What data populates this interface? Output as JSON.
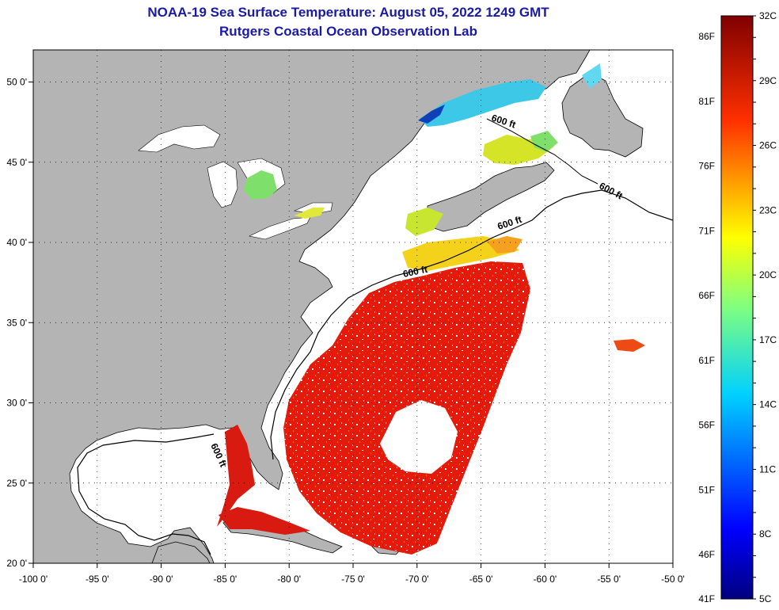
{
  "title": "NOAA-19 Sea Surface Temperature:  August 05, 2022 1249 GMT",
  "subtitle": "Rutgers Coastal Ocean Observation Lab",
  "map": {
    "lon_range": [
      -100,
      -50
    ],
    "lat_range": [
      20,
      52
    ],
    "lon_ticks": [
      {
        "value": -100,
        "label": "-100 0'"
      },
      {
        "value": -95,
        "label": "-95 0'"
      },
      {
        "value": -90,
        "label": "-90 0'"
      },
      {
        "value": -85,
        "label": "-85 0'"
      },
      {
        "value": -80,
        "label": "-80 0'"
      },
      {
        "value": -75,
        "label": "-75 0'"
      },
      {
        "value": -70,
        "label": "-70 0'"
      },
      {
        "value": -65,
        "label": "-65 0'"
      },
      {
        "value": -60,
        "label": "-60 0'"
      },
      {
        "value": -55,
        "label": "-55 0'"
      },
      {
        "value": -50,
        "label": "-50 0'"
      }
    ],
    "lat_ticks": [
      {
        "value": 50,
        "label": "50 0'"
      },
      {
        "value": 45,
        "label": "45 0'"
      },
      {
        "value": 40,
        "label": "40 0'"
      },
      {
        "value": 35,
        "label": "35 0'"
      },
      {
        "value": 30,
        "label": "30 0'"
      },
      {
        "value": 25,
        "label": "25 0'"
      },
      {
        "value": 20,
        "label": "20 0'"
      }
    ],
    "contour_labels": [
      "600 ft",
      "600 ft",
      "600 ft",
      "600 ft",
      "600 ft"
    ],
    "colors": {
      "land": "#b4b4b4",
      "no_data": "#ffffff",
      "grid": "#000000"
    }
  },
  "colorbar": {
    "celsius": [
      "32C",
      "29C",
      "26C",
      "23C",
      "20C",
      "17C",
      "14C",
      "11C",
      "8C",
      "5C"
    ],
    "fahrenheit": [
      "86F",
      "81F",
      "76F",
      "71F",
      "66F",
      "61F",
      "56F",
      "51F",
      "46F",
      "41F"
    ],
    "range_c": [
      5,
      32
    ],
    "range_f": [
      41,
      86
    ]
  }
}
